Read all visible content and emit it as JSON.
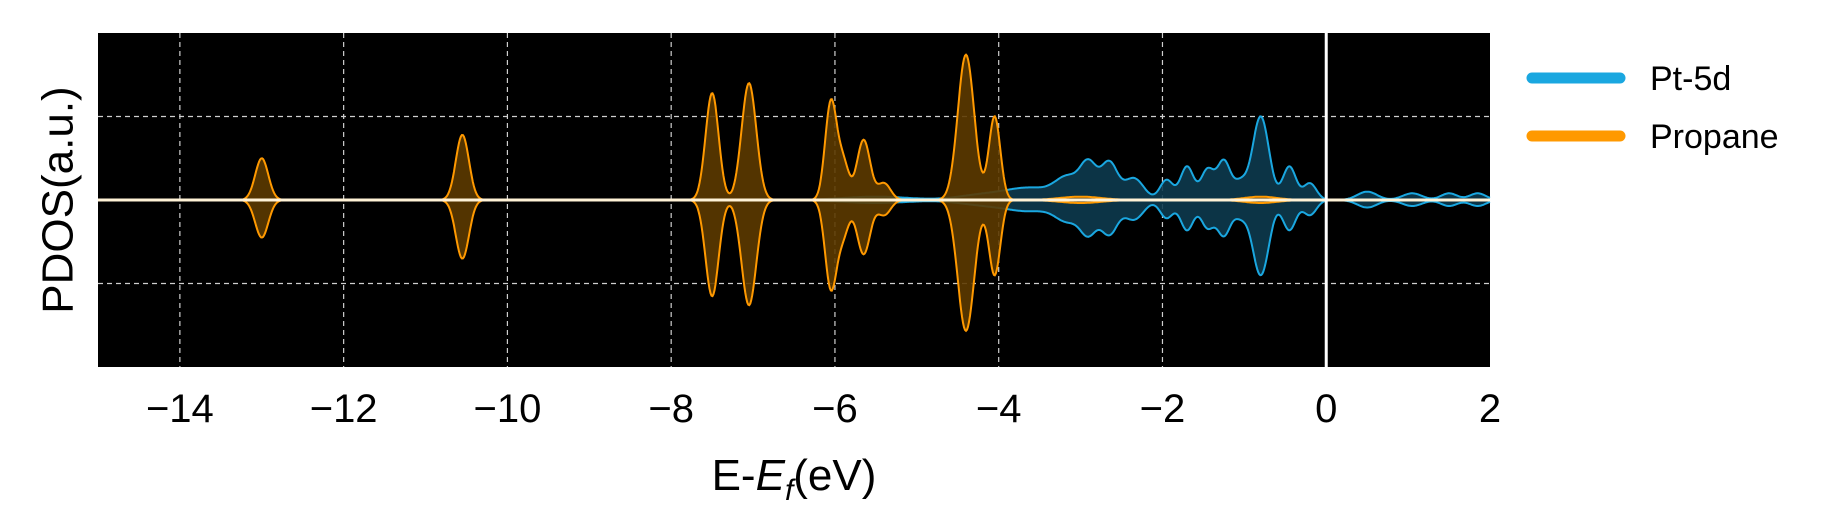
{
  "chart_data": {
    "type": "area",
    "xlabel_prefix": "E-",
    "xlabel_symbol": "E",
    "xlabel_subscript": "f",
    "xlabel_suffix": "(eV)",
    "ylabel": "PDOS(a.u.)",
    "xlim": [
      -15,
      2
    ],
    "ylim": [
      -1.0,
      1.0
    ],
    "xticks": [
      -14,
      -12,
      -10,
      -8,
      -6,
      -4,
      -2,
      0,
      2
    ],
    "xtick_labels": [
      "−14",
      "−12",
      "−10",
      "−8",
      "−6",
      "−4",
      "−2",
      "0",
      "2"
    ],
    "yticks": [
      -0.5,
      0.5
    ],
    "grid": true,
    "background": "#000000",
    "fermi_line_x": 0,
    "legend_position": "outside-right",
    "series": [
      {
        "name": "Propane",
        "color": "#ff9900",
        "fill": "#5c3a00",
        "spin_down_scale": 0.9,
        "peaks": [
          {
            "center": -13.0,
            "height": 0.25,
            "width": 0.08
          },
          {
            "center": -10.55,
            "height": 0.39,
            "width": 0.08
          },
          {
            "center": -7.5,
            "height": 0.64,
            "width": 0.08
          },
          {
            "center": -7.05,
            "height": 0.7,
            "width": 0.09
          },
          {
            "center": -6.05,
            "height": 0.58,
            "width": 0.07
          },
          {
            "center": -5.9,
            "height": 0.22,
            "width": 0.07
          },
          {
            "center": -5.65,
            "height": 0.36,
            "width": 0.08
          },
          {
            "center": -5.4,
            "height": 0.1,
            "width": 0.08
          },
          {
            "center": -4.4,
            "height": 0.87,
            "width": 0.1
          },
          {
            "center": -4.05,
            "height": 0.5,
            "width": 0.07
          },
          {
            "center": -3.0,
            "height": 0.02,
            "width": 0.25
          },
          {
            "center": -0.8,
            "height": 0.02,
            "width": 0.2
          }
        ]
      },
      {
        "name": "Pt-5d",
        "color": "#1aa7e0",
        "fill": "#0d3a4e",
        "spin_down_scale": 0.9,
        "peaks": [
          {
            "center": -5.5,
            "height": 0.02,
            "width": 0.4
          },
          {
            "center": -4.2,
            "height": 0.03,
            "width": 0.3
          },
          {
            "center": -3.6,
            "height": 0.07,
            "width": 0.3
          },
          {
            "center": -3.15,
            "height": 0.12,
            "width": 0.15
          },
          {
            "center": -2.9,
            "height": 0.2,
            "width": 0.1
          },
          {
            "center": -2.65,
            "height": 0.22,
            "width": 0.1
          },
          {
            "center": -2.35,
            "height": 0.13,
            "width": 0.12
          },
          {
            "center": -1.95,
            "height": 0.12,
            "width": 0.08
          },
          {
            "center": -1.7,
            "height": 0.2,
            "width": 0.08
          },
          {
            "center": -1.45,
            "height": 0.18,
            "width": 0.08
          },
          {
            "center": -1.25,
            "height": 0.23,
            "width": 0.08
          },
          {
            "center": -1.05,
            "height": 0.1,
            "width": 0.08
          },
          {
            "center": -0.8,
            "height": 0.5,
            "width": 0.1
          },
          {
            "center": -0.45,
            "height": 0.2,
            "width": 0.08
          },
          {
            "center": -0.2,
            "height": 0.1,
            "width": 0.08
          },
          {
            "center": 0.5,
            "height": 0.05,
            "width": 0.12
          },
          {
            "center": 1.05,
            "height": 0.04,
            "width": 0.12
          },
          {
            "center": 1.5,
            "height": 0.04,
            "width": 0.1
          },
          {
            "center": 1.85,
            "height": 0.04,
            "width": 0.1
          }
        ]
      }
    ],
    "legend": [
      {
        "label": "Pt-5d",
        "color": "#1aa7e0"
      },
      {
        "label": "Propane",
        "color": "#ff9900"
      }
    ]
  }
}
